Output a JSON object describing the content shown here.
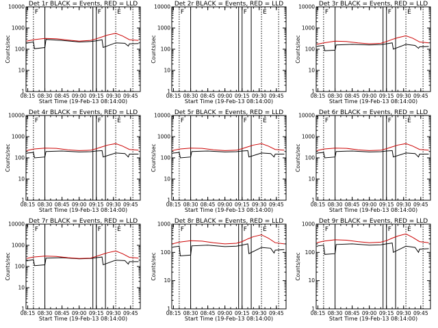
{
  "chart_data": [
    {
      "type": "line",
      "title": "Det 1r BLACK = Events, RED = LLD",
      "xlabel": "Start Time (19-Feb-13 08:14:00)",
      "ylabel": "Counts/sec",
      "y_scale": "log",
      "ylim": [
        1,
        10000
      ],
      "x_ticks": [
        "08:15",
        "08:30",
        "08:45",
        "09:00",
        "09:15",
        "09:30",
        "09:45"
      ],
      "y_ticks": [
        "1",
        "10",
        "100",
        "1000",
        "10000"
      ],
      "markers": [
        "F",
        "F",
        "E"
      ],
      "series": [
        {
          "color": "#000000",
          "x": [
            "08:14",
            "08:15",
            "08:20",
            "08:21",
            "08:30",
            "08:31",
            "08:45",
            "09:00",
            "09:10",
            "09:15",
            "09:20",
            "09:21",
            "09:32",
            "09:40",
            "09:43",
            "09:44",
            "09:52"
          ],
          "values": [
            190,
            200,
            220,
            105,
            120,
            290,
            260,
            220,
            230,
            250,
            280,
            120,
            200,
            190,
            140,
            180,
            185
          ]
        },
        {
          "color": "#cc0000",
          "x": [
            "08:14",
            "08:20",
            "08:30",
            "08:40",
            "08:50",
            "09:00",
            "09:10",
            "09:15",
            "09:20",
            "09:25",
            "09:32",
            "09:38",
            "09:44",
            "09:52"
          ],
          "values": [
            240,
            280,
            320,
            310,
            270,
            240,
            260,
            310,
            380,
            470,
            560,
            420,
            280,
            260
          ]
        }
      ]
    },
    {
      "type": "line",
      "title": "Det 2r BLACK = Events, RED = LLD",
      "xlabel": "Start Time (19-Feb-13 08:14:00)",
      "ylabel": "Counts/sec",
      "y_scale": "log",
      "ylim": [
        1,
        10000
      ],
      "x_ticks": [
        "08:15",
        "08:30",
        "08:45",
        "09:00",
        "09:15",
        "09:30",
        "09:45"
      ],
      "y_ticks": [
        "1",
        "10",
        "100",
        "1000",
        "10000"
      ],
      "markers": [
        "F",
        "F",
        "E"
      ],
      "series": []
    },
    {
      "type": "line",
      "title": "Det 3r BLACK = Events, RED = LLD",
      "xlabel": "Start Time (19-Feb-13 08:14:00)",
      "ylabel": "Counts/sec",
      "y_scale": "log",
      "ylim": [
        1,
        10000
      ],
      "x_ticks": [
        "08:15",
        "08:30",
        "08:45",
        "09:00",
        "09:15",
        "09:30",
        "09:45"
      ],
      "y_ticks": [
        "1",
        "10",
        "100",
        "1000",
        "10000"
      ],
      "markers": [
        "F",
        "F",
        "E"
      ],
      "series": [
        {
          "color": "#000000",
          "x": [
            "08:14",
            "08:15",
            "08:20",
            "08:21",
            "08:30",
            "08:31",
            "08:45",
            "09:00",
            "09:10",
            "09:15",
            "09:20",
            "09:21",
            "09:32",
            "09:40",
            "09:43",
            "09:44",
            "09:52"
          ],
          "values": [
            130,
            140,
            150,
            85,
            90,
            160,
            170,
            160,
            165,
            180,
            200,
            100,
            170,
            150,
            110,
            130,
            135
          ]
        },
        {
          "color": "#cc0000",
          "x": [
            "08:14",
            "08:20",
            "08:30",
            "08:40",
            "08:50",
            "09:00",
            "09:10",
            "09:15",
            "09:20",
            "09:25",
            "09:32",
            "09:38",
            "09:44",
            "09:52"
          ],
          "values": [
            170,
            200,
            240,
            230,
            200,
            180,
            190,
            230,
            290,
            350,
            430,
            330,
            220,
            200
          ]
        }
      ]
    },
    {
      "type": "line",
      "title": "Det 4r BLACK = Events, RED = LLD",
      "xlabel": "Start Time (19-Feb-13 08:14:00)",
      "ylabel": "Counts/sec",
      "y_scale": "log",
      "ylim": [
        1,
        10000
      ],
      "x_ticks": [
        "08:15",
        "08:30",
        "08:45",
        "09:00",
        "09:15",
        "09:30",
        "09:45"
      ],
      "y_ticks": [
        "1",
        "10",
        "100",
        "1000",
        "10000"
      ],
      "markers": [
        "F",
        "F",
        "E"
      ],
      "series": [
        {
          "color": "#000000",
          "x": [
            "08:14",
            "08:15",
            "08:20",
            "08:21",
            "08:30",
            "08:31",
            "08:45",
            "09:00",
            "09:10",
            "09:15",
            "09:20",
            "09:21",
            "09:32",
            "09:40",
            "09:43",
            "09:44",
            "09:52"
          ],
          "values": [
            160,
            170,
            180,
            100,
            110,
            200,
            210,
            190,
            195,
            210,
            220,
            110,
            170,
            160,
            110,
            150,
            150
          ]
        },
        {
          "color": "#cc0000",
          "x": [
            "08:14",
            "08:20",
            "08:30",
            "08:40",
            "08:50",
            "09:00",
            "09:10",
            "09:15",
            "09:20",
            "09:25",
            "09:32",
            "09:38",
            "09:44",
            "09:52"
          ],
          "values": [
            220,
            260,
            290,
            280,
            240,
            220,
            230,
            270,
            330,
            400,
            470,
            360,
            250,
            230
          ]
        }
      ]
    },
    {
      "type": "line",
      "title": "Det 5r BLACK = Events, RED = LLD",
      "xlabel": "Start Time (19-Feb-13 08:14:00)",
      "ylabel": "Counts/sec",
      "y_scale": "log",
      "ylim": [
        1,
        10000
      ],
      "x_ticks": [
        "08:15",
        "08:30",
        "08:45",
        "09:00",
        "09:15",
        "09:30",
        "09:45"
      ],
      "y_ticks": [
        "1",
        "10",
        "100",
        "1000",
        "10000"
      ],
      "markers": [
        "F",
        "F",
        "E"
      ],
      "series": [
        {
          "color": "#000000",
          "x": [
            "08:14",
            "08:15",
            "08:20",
            "08:21",
            "08:30",
            "08:31",
            "08:45",
            "09:00",
            "09:10",
            "09:15",
            "09:20",
            "09:21",
            "09:32",
            "09:40",
            "09:43",
            "09:44",
            "09:52"
          ],
          "values": [
            160,
            170,
            180,
            100,
            110,
            200,
            210,
            190,
            195,
            210,
            220,
            110,
            170,
            160,
            110,
            150,
            150
          ]
        },
        {
          "color": "#cc0000",
          "x": [
            "08:14",
            "08:20",
            "08:30",
            "08:40",
            "08:50",
            "09:00",
            "09:10",
            "09:15",
            "09:20",
            "09:25",
            "09:32",
            "09:38",
            "09:44",
            "09:52"
          ],
          "values": [
            220,
            260,
            290,
            280,
            240,
            220,
            230,
            270,
            330,
            400,
            470,
            360,
            250,
            230
          ]
        }
      ]
    },
    {
      "type": "line",
      "title": "Det 6r BLACK = Events, RED = LLD",
      "xlabel": "Start Time (19-Feb-13 08:14:00)",
      "ylabel": "Counts/sec",
      "y_scale": "log",
      "ylim": [
        1,
        10000
      ],
      "x_ticks": [
        "08:15",
        "08:30",
        "08:45",
        "09:00",
        "09:15",
        "09:30",
        "09:45"
      ],
      "y_ticks": [
        "1",
        "10",
        "100",
        "1000",
        "10000"
      ],
      "markers": [
        "F",
        "F",
        "E"
      ],
      "series": [
        {
          "color": "#000000",
          "x": [
            "08:14",
            "08:15",
            "08:20",
            "08:21",
            "08:30",
            "08:31",
            "08:45",
            "09:00",
            "09:10",
            "09:15",
            "09:20",
            "09:21",
            "09:32",
            "09:40",
            "09:43",
            "09:44",
            "09:52"
          ],
          "values": [
            160,
            170,
            180,
            100,
            110,
            200,
            210,
            190,
            195,
            210,
            220,
            110,
            170,
            160,
            110,
            150,
            150
          ]
        },
        {
          "color": "#cc0000",
          "x": [
            "08:14",
            "08:20",
            "08:30",
            "08:40",
            "08:50",
            "09:00",
            "09:10",
            "09:15",
            "09:20",
            "09:25",
            "09:32",
            "09:38",
            "09:44",
            "09:52"
          ],
          "values": [
            220,
            260,
            290,
            280,
            240,
            220,
            230,
            270,
            330,
            400,
            470,
            360,
            250,
            230
          ]
        }
      ]
    },
    {
      "type": "line",
      "title": "Det 7r BLACK = Events, RED = LLD",
      "xlabel": "Start Time (19-Feb-13 08:14:00)",
      "ylabel": "Counts/sec",
      "y_scale": "log",
      "ylim": [
        1,
        10000
      ],
      "x_ticks": [
        "08:15",
        "08:30",
        "08:45",
        "09:00",
        "09:15",
        "09:30",
        "09:45"
      ],
      "y_ticks": [
        "1",
        "10",
        "100",
        "1000",
        "10000"
      ],
      "markers": [
        "F",
        "F",
        "E"
      ],
      "series": [
        {
          "color": "#000000",
          "x": [
            "08:14",
            "08:15",
            "08:20",
            "08:21",
            "08:30",
            "08:31",
            "08:45",
            "09:00",
            "09:10",
            "09:15",
            "09:20",
            "09:21",
            "09:32",
            "09:40",
            "09:43",
            "09:44",
            "09:52"
          ],
          "values": [
            180,
            190,
            210,
            110,
            120,
            250,
            260,
            230,
            240,
            260,
            280,
            120,
            200,
            190,
            130,
            170,
            170
          ]
        },
        {
          "color": "#cc0000",
          "x": [
            "08:14",
            "08:20",
            "08:30",
            "08:40",
            "08:50",
            "09:00",
            "09:10",
            "09:15",
            "09:20",
            "09:25",
            "09:32",
            "09:38",
            "09:44",
            "09:52"
          ],
          "values": [
            240,
            280,
            310,
            300,
            260,
            240,
            250,
            300,
            370,
            450,
            540,
            400,
            270,
            250
          ]
        }
      ]
    },
    {
      "type": "line",
      "title": "Det 8r BLACK = Events, RED = LLD",
      "xlabel": "Start Time (19-Feb-13 08:14:00)",
      "ylabel": "Counts/sec",
      "y_scale": "log",
      "ylim": [
        1,
        1000
      ],
      "x_ticks": [
        "08:15",
        "08:30",
        "08:45",
        "09:00",
        "09:15",
        "09:30",
        "09:45"
      ],
      "y_ticks": [
        "1",
        "10",
        "100",
        "1000"
      ],
      "markers": [
        "F",
        "F",
        "E"
      ],
      "series": [
        {
          "color": "#000000",
          "x": [
            "08:14",
            "08:15",
            "08:20",
            "08:21",
            "08:30",
            "08:31",
            "08:45",
            "09:00",
            "09:10",
            "09:15",
            "09:20",
            "09:21",
            "09:32",
            "09:40",
            "09:43",
            "09:44",
            "09:52"
          ],
          "values": [
            150,
            155,
            165,
            75,
            80,
            170,
            180,
            160,
            165,
            180,
            200,
            90,
            150,
            140,
            95,
            120,
            125
          ]
        },
        {
          "color": "#cc0000",
          "x": [
            "08:14",
            "08:20",
            "08:30",
            "08:40",
            "08:50",
            "09:00",
            "09:10",
            "09:15",
            "09:20",
            "09:25",
            "09:32",
            "09:38",
            "09:44",
            "09:52"
          ],
          "values": [
            200,
            230,
            260,
            250,
            220,
            200,
            210,
            240,
            300,
            360,
            420,
            320,
            220,
            200
          ]
        }
      ]
    },
    {
      "type": "line",
      "title": "Det 9r BLACK = Events, RED = LLD",
      "xlabel": "Start Time (19-Feb-13 08:14:00)",
      "ylabel": "Counts/sec",
      "y_scale": "log",
      "ylim": [
        1,
        1000
      ],
      "x_ticks": [
        "08:15",
        "08:30",
        "08:45",
        "09:00",
        "09:15",
        "09:30",
        "09:45"
      ],
      "y_ticks": [
        "1",
        "10",
        "100",
        "1000"
      ],
      "markers": [
        "F",
        "F",
        "E"
      ],
      "series": [
        {
          "color": "#000000",
          "x": [
            "08:14",
            "08:15",
            "08:20",
            "08:21",
            "08:30",
            "08:31",
            "08:45",
            "09:00",
            "09:10",
            "09:15",
            "09:20",
            "09:21",
            "09:32",
            "09:40",
            "09:43",
            "09:44",
            "09:52"
          ],
          "values": [
            160,
            170,
            180,
            85,
            90,
            190,
            200,
            180,
            185,
            200,
            215,
            100,
            165,
            150,
            100,
            130,
            135
          ]
        },
        {
          "color": "#cc0000",
          "x": [
            "08:14",
            "08:20",
            "08:30",
            "08:40",
            "08:50",
            "09:00",
            "09:10",
            "09:15",
            "09:20",
            "09:25",
            "09:32",
            "09:38",
            "09:44",
            "09:52"
          ],
          "values": [
            220,
            250,
            280,
            270,
            240,
            220,
            230,
            260,
            320,
            380,
            450,
            340,
            240,
            220
          ]
        }
      ]
    }
  ],
  "vertical_lines": {
    "solid": [
      "08:30",
      "09:12",
      "09:15",
      "09:23"
    ],
    "dotted": [
      "08:20",
      "09:32",
      "09:47"
    ]
  }
}
